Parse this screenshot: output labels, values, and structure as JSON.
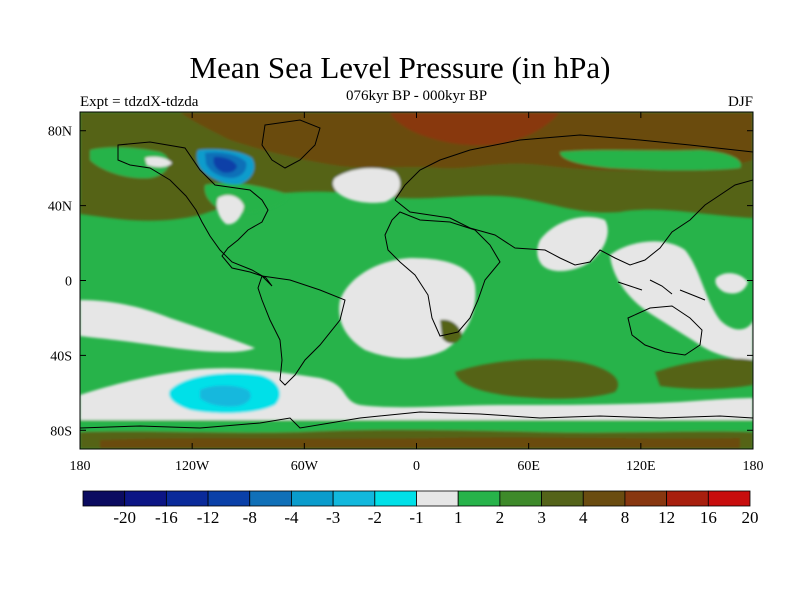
{
  "title": "Mean Sea Level Pressure (in hPa)",
  "subtitle": "076kyr BP - 000kyr BP",
  "left_label": "Expt = tdzdX-tdzda",
  "right_label": "DJF",
  "axes": {
    "lat_labels": [
      "80N",
      "40N",
      "0",
      "40S",
      "80S"
    ],
    "lat_values": [
      80,
      40,
      0,
      -40,
      -80
    ],
    "lon_labels": [
      "180",
      "120W",
      "60W",
      "0",
      "60E",
      "120E",
      "180"
    ],
    "lon_values": [
      -180,
      -120,
      -60,
      0,
      60,
      120,
      180
    ],
    "lon_range": [
      -180,
      180
    ],
    "lat_range": [
      -90,
      90
    ]
  },
  "colorbar": {
    "labels": [
      "-20",
      "-16",
      "-12",
      "-8",
      "-4",
      "-3",
      "-2",
      "-1",
      "1",
      "2",
      "3",
      "4",
      "8",
      "12",
      "16",
      "20"
    ],
    "colors": [
      "#0b0b60",
      "#0c1585",
      "#0a2a9a",
      "#0a40a8",
      "#1070b8",
      "#0a9ccc",
      "#12b8dd",
      "#00e0e8",
      "#e6e6e6",
      "#27b34a",
      "#3e8a2a",
      "#546319",
      "#6a4c10",
      "#883710",
      "#a81f0e",
      "#c80d0d"
    ]
  },
  "chart_data": {
    "type": "heatmap",
    "title": "Mean Sea Level Pressure (in hPa)",
    "subtitle": "076kyr BP - 000kyr BP",
    "units": "hPa",
    "levels": [
      -20,
      -16,
      -12,
      -8,
      -4,
      -3,
      -2,
      -1,
      1,
      2,
      3,
      4,
      8,
      12,
      16,
      20
    ],
    "xlim": [
      -180,
      180
    ],
    "ylim": [
      -90,
      90
    ]
  }
}
